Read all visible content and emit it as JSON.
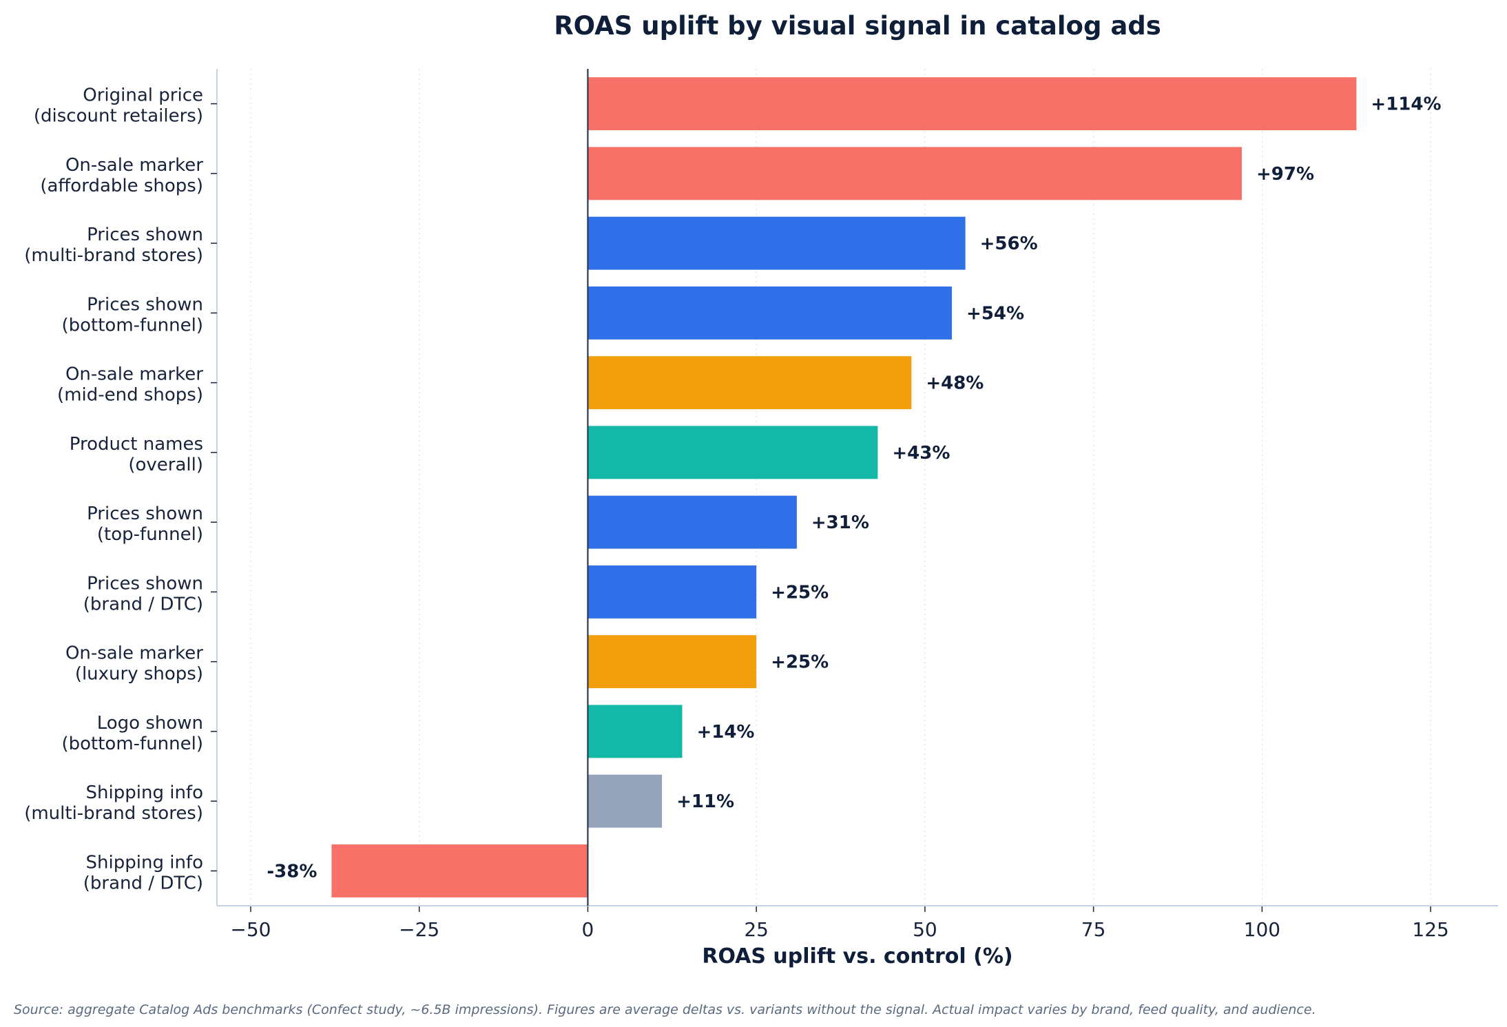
{
  "chart_data": {
    "type": "bar",
    "orientation": "horizontal",
    "title": "ROAS uplift by visual signal in catalog ads",
    "xlabel": "ROAS uplift vs. control (%)",
    "ylabel": "",
    "xlim": [
      -55,
      135
    ],
    "xticks": [
      -50,
      -25,
      0,
      25,
      50,
      75,
      100,
      125
    ],
    "xtick_labels": [
      "−50",
      "−25",
      "0",
      "25",
      "50",
      "75",
      "100",
      "125"
    ],
    "grid": "vertical dotted",
    "categories": [
      [
        "Original price",
        "(discount retailers)"
      ],
      [
        "On-sale marker",
        "(affordable shops)"
      ],
      [
        "Prices shown",
        "(multi-brand stores)"
      ],
      [
        "Prices shown",
        "(bottom-funnel)"
      ],
      [
        "On-sale marker",
        "(mid-end shops)"
      ],
      [
        "Product names",
        "(overall)"
      ],
      [
        "Prices shown",
        "(top-funnel)"
      ],
      [
        "Prices shown",
        "(brand / DTC)"
      ],
      [
        "On-sale marker",
        "(luxury shops)"
      ],
      [
        "Logo shown",
        "(bottom-funnel)"
      ],
      [
        "Shipping info",
        "(multi-brand stores)"
      ],
      [
        "Shipping info",
        "(brand / DTC)"
      ]
    ],
    "values": [
      114,
      97,
      56,
      54,
      48,
      43,
      31,
      25,
      25,
      14,
      11,
      -38
    ],
    "labels": [
      "+114%",
      "+97%",
      "+56%",
      "+54%",
      "+48%",
      "+43%",
      "+31%",
      "+25%",
      "+25%",
      "+14%",
      "+11%",
      "-38%"
    ],
    "colors": [
      "#f87168",
      "#f87168",
      "#2f6fe8",
      "#2f6fe8",
      "#f39f0c",
      "#14b8a6",
      "#2f6fe8",
      "#2f6fe8",
      "#f39f0c",
      "#14b8a6",
      "#94a3b8",
      "#f87168"
    ]
  },
  "source_note": "Source: aggregate Catalog Ads benchmarks (Confect study, ~6.5B impressions). Figures are average deltas vs. variants without the signal. Actual impact varies by brand, feed quality, and audience."
}
